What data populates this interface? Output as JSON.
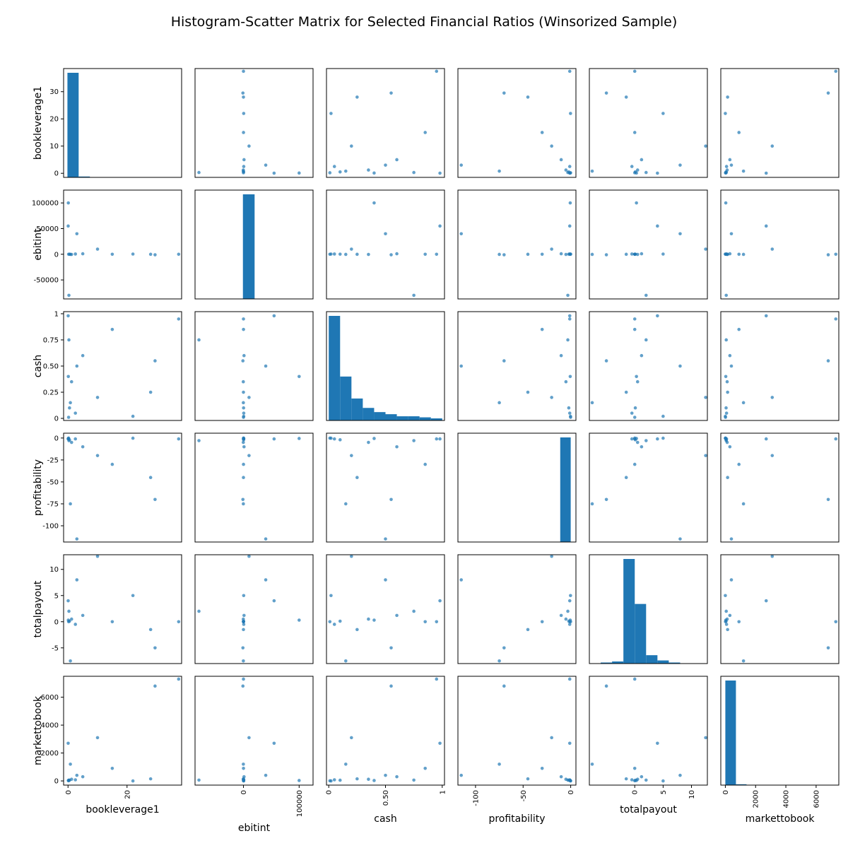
{
  "chart_data": {
    "type": "scatter",
    "title": "Histogram-Scatter Matrix for Selected Financial Ratios (Winsorized Sample)",
    "variables": [
      "bookleverage1",
      "ebitint",
      "cash",
      "profitability",
      "totalpayout",
      "markettobook"
    ],
    "diagonal": "histogram",
    "marker_color": "#1f77b4",
    "axes": {
      "bookleverage1": {
        "lim": [
          -1.5,
          38.5
        ],
        "ticks": [
          0,
          10,
          20,
          30
        ],
        "x_ticks": [
          0,
          20
        ]
      },
      "ebitint": {
        "lim": [
          -87000,
          125000
        ],
        "ticks": [
          -50000,
          0,
          50000,
          100000
        ],
        "x_ticks": [
          0,
          100000
        ]
      },
      "cash": {
        "lim": [
          -0.02,
          1.02
        ],
        "ticks": [
          0.0,
          0.25,
          0.5,
          0.75,
          1.0
        ],
        "x_ticks": [
          0.0,
          0.5,
          1.0
        ]
      },
      "profitability": {
        "lim": [
          -118.5,
          5.5
        ],
        "ticks": [
          -100,
          -75,
          -50,
          -25,
          0
        ],
        "x_ticks": [
          -100,
          -50,
          0
        ]
      },
      "totalpayout": {
        "lim": [
          -8.0,
          12.8
        ],
        "ticks": [
          -5,
          0,
          5,
          10
        ],
        "x_ticks": [
          0,
          5,
          10
        ]
      },
      "markettobook": {
        "lim": [
          -300,
          7500
        ],
        "ticks": [
          0,
          2000,
          4000,
          6000
        ],
        "x_ticks": [
          0,
          2000,
          4000,
          6000
        ]
      }
    },
    "histograms": {
      "bookleverage1": {
        "bins": [
          -0.2,
          3.6,
          7.4
        ],
        "counts": [
          37,
          0.3
        ]
      },
      "ebitint": {
        "bins": [
          -20000,
          -1000,
          20000
        ],
        "counts": [
          0,
          100
        ]
      },
      "cash": {
        "bins": [
          0,
          0.1,
          0.2,
          0.3,
          0.4,
          0.5,
          0.6,
          0.7,
          0.8,
          0.9,
          1.0
        ],
        "counts": [
          100,
          42,
          21,
          12,
          8,
          6,
          4,
          4,
          3,
          2
        ]
      },
      "profitability": {
        "bins": [
          -11,
          0
        ],
        "counts": [
          100
        ]
      },
      "totalpayout": {
        "bins": [
          -6,
          -4,
          -2,
          0,
          2,
          4,
          6,
          8
        ],
        "counts": [
          1,
          2,
          100,
          57,
          8,
          3,
          1
        ]
      },
      "markettobook": {
        "bins": [
          0,
          700,
          1400,
          2100,
          2800
        ],
        "counts": [
          100,
          0.8,
          0.2,
          0.1
        ]
      }
    },
    "sample_points": [
      [
        0.5,
        200,
        0.1,
        -2,
        0.1,
        50
      ],
      [
        1.2,
        -300,
        0.35,
        -5,
        0.5,
        120
      ],
      [
        2.5,
        500,
        0.05,
        -1,
        -0.5,
        80
      ],
      [
        5.0,
        1000,
        0.6,
        -10,
        1.2,
        300
      ],
      [
        15.0,
        50,
        0.85,
        -30,
        0.0,
        900
      ],
      [
        28.0,
        -50,
        0.25,
        -45,
        -1.5,
        150
      ],
      [
        37.5,
        0,
        0.95,
        -1,
        0.0,
        7300
      ],
      [
        0.1,
        100000,
        0.4,
        -0.5,
        0.3,
        30
      ],
      [
        0.3,
        -80000,
        0.75,
        -3,
        2.0,
        60
      ],
      [
        3.0,
        40000,
        0.5,
        -115,
        8.0,
        400
      ],
      [
        0.8,
        -200,
        0.15,
        -75,
        -7.5,
        1200
      ],
      [
        10.0,
        10000,
        0.2,
        -20,
        12.5,
        3100
      ],
      [
        22.0,
        400,
        0.02,
        -0.2,
        5.0,
        0
      ],
      [
        0.05,
        55000,
        0.98,
        -1,
        4.0,
        2700
      ],
      [
        29.5,
        -1000,
        0.55,
        -70,
        -5.0,
        6800
      ],
      [
        0.2,
        0,
        0.01,
        -0.1,
        0.0,
        10
      ]
    ]
  }
}
